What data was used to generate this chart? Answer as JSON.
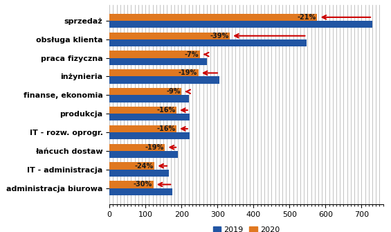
{
  "categories": [
    "sprzedaż",
    "obsługa klienta",
    "praca fizyczna",
    "inżynieria",
    "finanse, ekonomia",
    "produkcja",
    "IT - rozw. oprogr.",
    "łańcuch dostaw",
    "IT - administracja",
    "administracja biurowa"
  ],
  "values_2019": [
    730,
    548,
    270,
    305,
    220,
    222,
    222,
    190,
    165,
    175
  ],
  "values_2020": [
    577,
    334,
    251,
    247,
    200,
    186,
    186,
    154,
    125,
    122
  ],
  "pct_labels": [
    "-21%",
    "-39%",
    "-7%",
    "-19%",
    "-9%",
    "-16%",
    "-16%",
    "-19%",
    "-24%",
    "-30%"
  ],
  "color_2019": "#2155a3",
  "color_2020": "#e07820",
  "arrow_color": "#cc0000",
  "bar_height": 0.38,
  "xlim": [
    0,
    760
  ],
  "xticks": [
    0,
    100,
    200,
    300,
    400,
    500,
    600,
    700
  ],
  "legend_labels": [
    "2019",
    "2020"
  ],
  "grid_color": "#aaaaaa",
  "title": ""
}
